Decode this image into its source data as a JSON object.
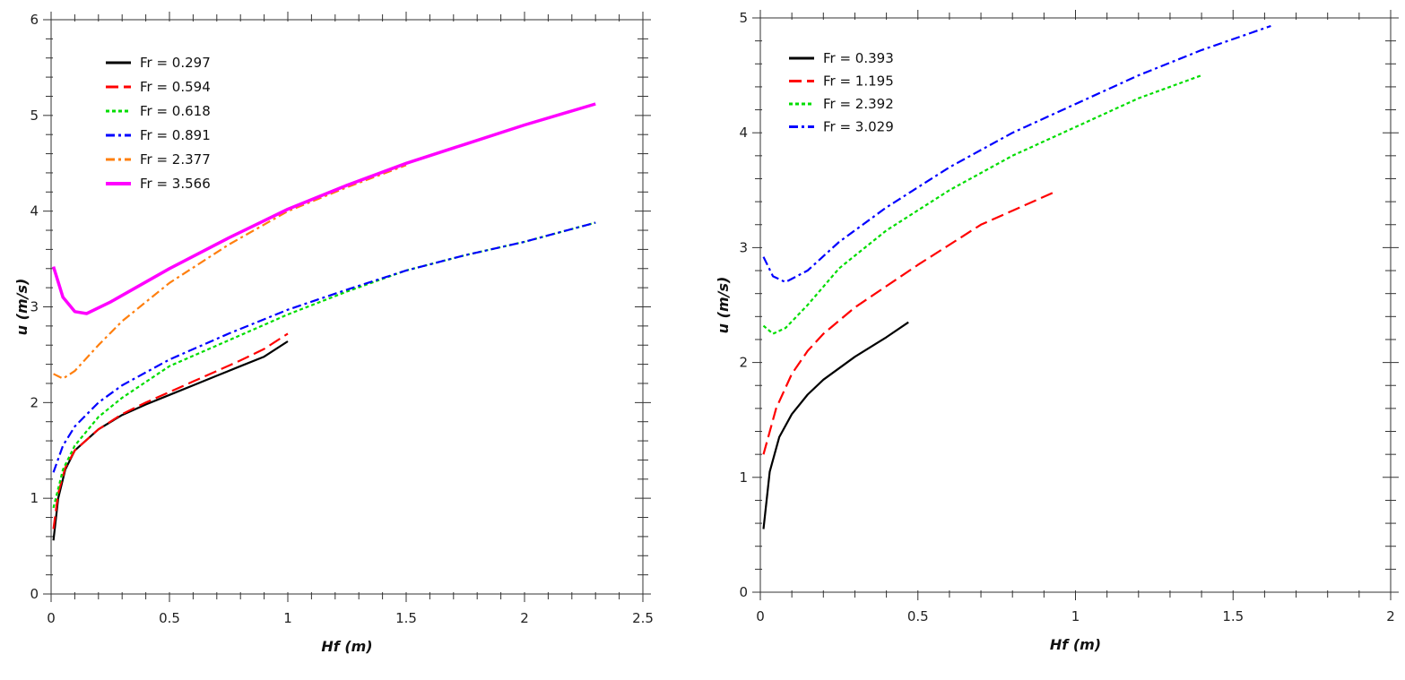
{
  "chart_data": [
    {
      "type": "line",
      "xlabel": "Hf (m)",
      "ylabel": "u (m/s)",
      "xlim": [
        0,
        2.5
      ],
      "ylim": [
        0,
        6
      ],
      "xticks": [
        "0",
        "0.5",
        "1",
        "1.5",
        "2",
        "2.5"
      ],
      "yticks": [
        "0",
        "1",
        "2",
        "3",
        "4",
        "5",
        "6"
      ],
      "grid": false,
      "legend": "top-left",
      "series": [
        {
          "name": "Fr = 0.297",
          "color": "#000000",
          "dash": "solid",
          "x": [
            0.01,
            0.03,
            0.06,
            0.1,
            0.2,
            0.3,
            0.4,
            0.5,
            0.6,
            0.7,
            0.8,
            0.9,
            1.0
          ],
          "y": [
            0.56,
            1.0,
            1.3,
            1.5,
            1.72,
            1.87,
            1.98,
            2.08,
            2.18,
            2.28,
            2.38,
            2.48,
            2.64
          ]
        },
        {
          "name": "Fr = 0.594",
          "color": "#ff0000",
          "dash": "dash",
          "x": [
            0.01,
            0.03,
            0.06,
            0.1,
            0.2,
            0.3,
            0.4,
            0.5,
            0.6,
            0.7,
            0.8,
            0.9,
            1.0
          ],
          "y": [
            0.68,
            1.05,
            1.32,
            1.5,
            1.72,
            1.88,
            2.0,
            2.11,
            2.22,
            2.33,
            2.44,
            2.56,
            2.72
          ]
        },
        {
          "name": "Fr = 0.618",
          "color": "#00dd00",
          "dash": "dot",
          "x": [
            0.01,
            0.05,
            0.1,
            0.2,
            0.3,
            0.5,
            0.75,
            1.0,
            1.25,
            1.5,
            1.75,
            2.0,
            2.3
          ],
          "y": [
            0.9,
            1.3,
            1.55,
            1.85,
            2.05,
            2.38,
            2.65,
            2.92,
            3.16,
            3.38,
            3.54,
            3.68,
            3.88
          ]
        },
        {
          "name": "Fr = 0.891",
          "color": "#0000ff",
          "dash": "dashdot",
          "x": [
            0.01,
            0.05,
            0.1,
            0.2,
            0.3,
            0.5,
            0.75,
            1.0,
            1.25,
            1.5,
            1.75,
            2.0,
            2.3
          ],
          "y": [
            1.27,
            1.55,
            1.75,
            2.0,
            2.18,
            2.45,
            2.72,
            2.97,
            3.18,
            3.38,
            3.54,
            3.68,
            3.88
          ]
        },
        {
          "name": "Fr = 2.377",
          "color": "#ff7f0e",
          "dash": "dashdot",
          "x": [
            0.01,
            0.05,
            0.1,
            0.2,
            0.3,
            0.5,
            0.75,
            1.0,
            1.25,
            1.5
          ],
          "y": [
            2.3,
            2.25,
            2.33,
            2.6,
            2.85,
            3.25,
            3.65,
            4.0,
            4.25,
            4.48
          ]
        },
        {
          "name": "Fr = 3.566",
          "color": "#ff00ff",
          "dash": "solid-thick",
          "x": [
            0.01,
            0.05,
            0.1,
            0.15,
            0.25,
            0.5,
            0.75,
            1.0,
            1.25,
            1.5,
            1.75,
            2.0,
            2.3
          ],
          "y": [
            3.42,
            3.1,
            2.95,
            2.93,
            3.05,
            3.4,
            3.72,
            4.02,
            4.27,
            4.5,
            4.7,
            4.9,
            5.12
          ]
        }
      ]
    },
    {
      "type": "line",
      "xlabel": "Hf (m)",
      "ylabel": "u (m/s)",
      "xlim": [
        0,
        2
      ],
      "ylim": [
        0,
        5
      ],
      "xticks": [
        "0",
        "0.5",
        "1",
        "1.5",
        "2"
      ],
      "yticks": [
        "0",
        "1",
        "2",
        "3",
        "4",
        "5"
      ],
      "grid": false,
      "legend": "top-left",
      "series": [
        {
          "name": "Fr = 0.393",
          "color": "#000000",
          "dash": "solid",
          "x": [
            0.01,
            0.03,
            0.06,
            0.1,
            0.15,
            0.2,
            0.3,
            0.4,
            0.47
          ],
          "y": [
            0.55,
            1.05,
            1.35,
            1.55,
            1.72,
            1.85,
            2.05,
            2.22,
            2.35
          ]
        },
        {
          "name": "Fr = 1.195",
          "color": "#ff0000",
          "dash": "dash",
          "x": [
            0.01,
            0.05,
            0.1,
            0.15,
            0.2,
            0.3,
            0.5,
            0.7,
            0.93
          ],
          "y": [
            1.2,
            1.6,
            1.9,
            2.1,
            2.25,
            2.48,
            2.85,
            3.2,
            3.48
          ]
        },
        {
          "name": "Fr = 2.392",
          "color": "#00dd00",
          "dash": "dot",
          "x": [
            0.01,
            0.04,
            0.08,
            0.15,
            0.25,
            0.4,
            0.6,
            0.8,
            1.0,
            1.2,
            1.4
          ],
          "y": [
            2.32,
            2.25,
            2.3,
            2.5,
            2.82,
            3.15,
            3.5,
            3.8,
            4.05,
            4.3,
            4.5
          ]
        },
        {
          "name": "Fr = 3.029",
          "color": "#0000ff",
          "dash": "dashdot",
          "x": [
            0.01,
            0.04,
            0.08,
            0.15,
            0.25,
            0.4,
            0.6,
            0.8,
            1.0,
            1.2,
            1.4,
            1.62
          ],
          "y": [
            2.92,
            2.75,
            2.7,
            2.8,
            3.05,
            3.35,
            3.7,
            4.0,
            4.25,
            4.5,
            4.72,
            4.93
          ]
        }
      ]
    }
  ]
}
